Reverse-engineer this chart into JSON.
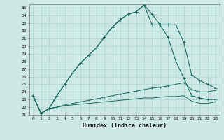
{
  "xlabel": "Humidex (Indice chaleur)",
  "ylabel": "",
  "xlim": [
    -0.5,
    23.5
  ],
  "ylim": [
    21,
    35.5
  ],
  "xticks": [
    0,
    1,
    2,
    3,
    4,
    5,
    6,
    7,
    8,
    9,
    10,
    11,
    12,
    13,
    14,
    15,
    16,
    17,
    18,
    19,
    20,
    21,
    22,
    23
  ],
  "yticks": [
    21,
    22,
    23,
    24,
    25,
    26,
    27,
    28,
    29,
    30,
    31,
    32,
    33,
    34,
    35
  ],
  "bg_color": "#cde8e5",
  "grid_color": "#a8d5d0",
  "line_color": "#1a6b60",
  "line1": [
    23.5,
    21.2,
    21.8,
    23.5,
    25.0,
    26.5,
    27.8,
    28.8,
    29.8,
    31.2,
    32.5,
    33.5,
    34.2,
    34.5,
    35.4,
    34.2,
    32.8,
    32.8,
    32.8,
    30.5,
    26.2,
    25.5,
    25.0,
    24.5
  ],
  "line2": [
    23.5,
    21.2,
    21.8,
    23.5,
    25.0,
    26.5,
    27.8,
    28.8,
    29.8,
    31.2,
    32.5,
    33.5,
    34.2,
    34.5,
    35.4,
    32.8,
    32.8,
    31.2,
    28.0,
    25.8,
    23.5,
    23.2,
    23.0,
    23.0
  ],
  "line3": [
    23.5,
    21.2,
    21.8,
    22.0,
    22.3,
    22.5,
    22.7,
    22.9,
    23.1,
    23.3,
    23.5,
    23.7,
    23.9,
    24.1,
    24.3,
    24.5,
    24.6,
    24.8,
    25.0,
    25.2,
    24.3,
    24.0,
    24.0,
    24.2
  ],
  "line4": [
    23.5,
    21.2,
    21.8,
    22.0,
    22.2,
    22.3,
    22.4,
    22.5,
    22.6,
    22.7,
    22.8,
    22.9,
    23.0,
    23.1,
    23.2,
    23.2,
    23.3,
    23.4,
    23.4,
    23.5,
    22.8,
    22.5,
    22.5,
    22.7
  ]
}
